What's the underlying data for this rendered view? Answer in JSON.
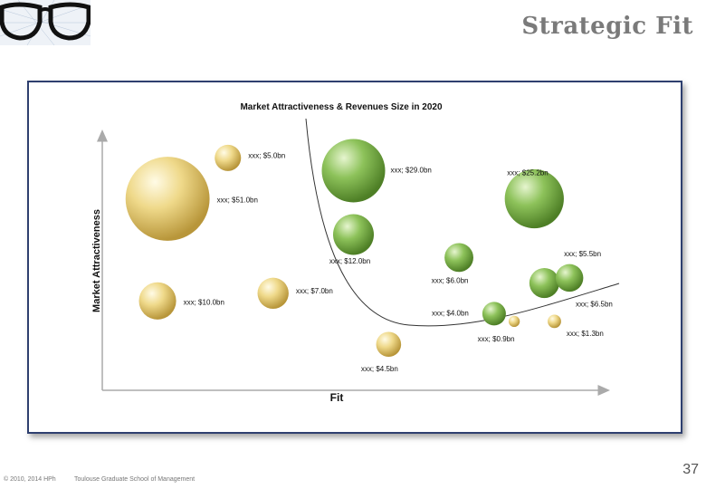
{
  "slide": {
    "title": "Strategic Fit",
    "page_number": "37",
    "footer_copyright": "© 2010, 2014 HPh",
    "footer_school": "Toulouse Graduate School of Management"
  },
  "colors": {
    "frame": "#2e3f6f",
    "yellow_bubble": "#e8cf73",
    "green_bubble": "#7fb24a",
    "curve": "#333333"
  },
  "chart_data": {
    "type": "bubble",
    "title": "Market Attractiveness &  Revenues Size in 2020",
    "xlabel": "Fit",
    "ylabel": "Market Attractiveness",
    "xlim": [
      0,
      100
    ],
    "ylim": [
      0,
      100
    ],
    "grid": false,
    "legend": "none",
    "series": [
      {
        "color": "yellow",
        "points": [
          {
            "x": 13,
            "y": 75,
            "size": 51.0,
            "label": "xxx; $51.0bn"
          },
          {
            "x": 25,
            "y": 91,
            "size": 5.0,
            "label": "xxx; $5.0bn"
          },
          {
            "x": 11,
            "y": 35,
            "size": 10.0,
            "label": "xxx; $10.0bn"
          },
          {
            "x": 34,
            "y": 38,
            "size": 7.0,
            "label": "xxx; $7.0bn"
          },
          {
            "x": 57,
            "y": 18,
            "size": 4.5,
            "label": "xxx; $4.5bn"
          },
          {
            "x": 82,
            "y": 27,
            "size": 0.9,
            "label": "xxx; $0.9bn"
          },
          {
            "x": 90,
            "y": 27,
            "size": 1.3,
            "label": "xxx; $1.3bn"
          }
        ]
      },
      {
        "color": "green",
        "points": [
          {
            "x": 50,
            "y": 86,
            "size": 29.0,
            "label": "xxx; $29.0bn"
          },
          {
            "x": 50,
            "y": 61,
            "size": 12.0,
            "label": "xxx; $12.0bn"
          },
          {
            "x": 71,
            "y": 52,
            "size": 6.0,
            "label": "xxx; $6.0bn"
          },
          {
            "x": 86,
            "y": 75,
            "size": 25.2,
            "label": "xxx; $25.2bn"
          },
          {
            "x": 78,
            "y": 30,
            "size": 4.0,
            "label": "xxx; $4.0bn"
          },
          {
            "x": 88,
            "y": 42,
            "size": 6.5,
            "label": "xxx; $6.5bn"
          },
          {
            "x": 93,
            "y": 44,
            "size": 5.5,
            "label": "xxx; $5.5bn"
          }
        ]
      }
    ]
  }
}
